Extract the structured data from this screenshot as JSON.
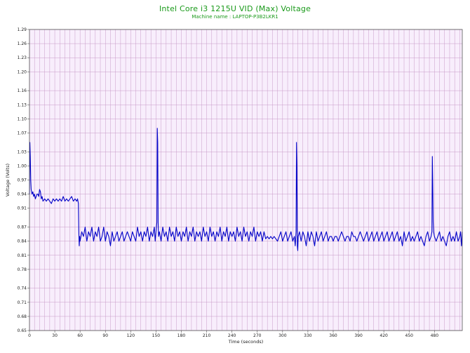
{
  "chart_data": {
    "type": "line",
    "title": "Intel Core i3 1215U VID (Max) Voltage",
    "subtitle": "Machine name : LAPTOP-P3B2LKR1",
    "xlabel": "Time (seconds)",
    "ylabel": "Voltage (Volts)",
    "xlim": [
      0,
      513
    ],
    "ylim": [
      0.65,
      1.29
    ],
    "x_ticks": [
      0,
      30,
      60,
      90,
      120,
      150,
      180,
      210,
      240,
      270,
      300,
      330,
      360,
      390,
      420,
      450,
      480
    ],
    "y_ticks": [
      0.65,
      0.68,
      0.71,
      0.74,
      0.78,
      0.81,
      0.84,
      0.87,
      0.91,
      0.94,
      0.97,
      1.0,
      1.03,
      1.07,
      1.1,
      1.13,
      1.16,
      1.2,
      1.23,
      1.26,
      1.29
    ],
    "grid": true,
    "colors": {
      "line": "#0000c8",
      "plot_bg": "#f8eefc",
      "grid": "#c89ac8",
      "title": "#1a9a1a"
    },
    "series": [
      {
        "values": [
          [
            0,
            0.94
          ],
          [
            0.5,
            1.05
          ],
          [
            1,
            1.02
          ],
          [
            1.5,
            0.97
          ],
          [
            2,
            0.95
          ],
          [
            3,
            0.94
          ],
          [
            4,
            0.945
          ],
          [
            5,
            0.935
          ],
          [
            6,
            0.94
          ],
          [
            7,
            0.93
          ],
          [
            8,
            0.935
          ],
          [
            9,
            0.94
          ],
          [
            10,
            0.94
          ],
          [
            11,
            0.935
          ],
          [
            12,
            0.95
          ],
          [
            13,
            0.945
          ],
          [
            14,
            0.93
          ],
          [
            15,
            0.935
          ],
          [
            16,
            0.925
          ],
          [
            18,
            0.93
          ],
          [
            20,
            0.925
          ],
          [
            22,
            0.93
          ],
          [
            24,
            0.925
          ],
          [
            26,
            0.92
          ],
          [
            28,
            0.93
          ],
          [
            30,
            0.925
          ],
          [
            32,
            0.93
          ],
          [
            34,
            0.925
          ],
          [
            36,
            0.93
          ],
          [
            38,
            0.925
          ],
          [
            40,
            0.935
          ],
          [
            42,
            0.925
          ],
          [
            44,
            0.93
          ],
          [
            46,
            0.925
          ],
          [
            48,
            0.93
          ],
          [
            50,
            0.935
          ],
          [
            52,
            0.925
          ],
          [
            54,
            0.93
          ],
          [
            56,
            0.925
          ],
          [
            57,
            0.93
          ],
          [
            58,
            0.92
          ],
          [
            58.5,
            0.86
          ],
          [
            59,
            0.83
          ],
          [
            59.5,
            0.85
          ],
          [
            60,
            0.84
          ],
          [
            62,
            0.86
          ],
          [
            64,
            0.85
          ],
          [
            66,
            0.87
          ],
          [
            68,
            0.84
          ],
          [
            70,
            0.86
          ],
          [
            72,
            0.85
          ],
          [
            74,
            0.87
          ],
          [
            76,
            0.84
          ],
          [
            78,
            0.86
          ],
          [
            80,
            0.85
          ],
          [
            82,
            0.87
          ],
          [
            84,
            0.84
          ],
          [
            86,
            0.85
          ],
          [
            88,
            0.87
          ],
          [
            90,
            0.84
          ],
          [
            92,
            0.86
          ],
          [
            94,
            0.85
          ],
          [
            96,
            0.83
          ],
          [
            98,
            0.86
          ],
          [
            100,
            0.84
          ],
          [
            102,
            0.85
          ],
          [
            104,
            0.86
          ],
          [
            106,
            0.84
          ],
          [
            108,
            0.85
          ],
          [
            110,
            0.86
          ],
          [
            112,
            0.84
          ],
          [
            114,
            0.85
          ],
          [
            116,
            0.86
          ],
          [
            118,
            0.85
          ],
          [
            120,
            0.84
          ],
          [
            122,
            0.86
          ],
          [
            124,
            0.85
          ],
          [
            126,
            0.84
          ],
          [
            128,
            0.87
          ],
          [
            130,
            0.85
          ],
          [
            132,
            0.86
          ],
          [
            134,
            0.84
          ],
          [
            136,
            0.86
          ],
          [
            138,
            0.85
          ],
          [
            140,
            0.87
          ],
          [
            142,
            0.84
          ],
          [
            144,
            0.86
          ],
          [
            146,
            0.85
          ],
          [
            148,
            0.87
          ],
          [
            149,
            0.84
          ],
          [
            150,
            0.86
          ],
          [
            151,
            0.88
          ],
          [
            151.5,
            1.08
          ],
          [
            152,
            1.05
          ],
          [
            152.5,
            0.88
          ],
          [
            153,
            0.85
          ],
          [
            154,
            0.86
          ],
          [
            156,
            0.84
          ],
          [
            158,
            0.87
          ],
          [
            160,
            0.85
          ],
          [
            162,
            0.86
          ],
          [
            164,
            0.84
          ],
          [
            166,
            0.87
          ],
          [
            168,
            0.85
          ],
          [
            170,
            0.86
          ],
          [
            172,
            0.84
          ],
          [
            174,
            0.87
          ],
          [
            176,
            0.85
          ],
          [
            178,
            0.86
          ],
          [
            180,
            0.84
          ],
          [
            182,
            0.86
          ],
          [
            184,
            0.85
          ],
          [
            186,
            0.87
          ],
          [
            188,
            0.84
          ],
          [
            190,
            0.86
          ],
          [
            192,
            0.85
          ],
          [
            194,
            0.87
          ],
          [
            196,
            0.84
          ],
          [
            198,
            0.86
          ],
          [
            200,
            0.85
          ],
          [
            202,
            0.86
          ],
          [
            204,
            0.84
          ],
          [
            206,
            0.87
          ],
          [
            208,
            0.85
          ],
          [
            210,
            0.86
          ],
          [
            212,
            0.84
          ],
          [
            214,
            0.87
          ],
          [
            216,
            0.85
          ],
          [
            218,
            0.86
          ],
          [
            220,
            0.84
          ],
          [
            222,
            0.86
          ],
          [
            224,
            0.85
          ],
          [
            226,
            0.87
          ],
          [
            228,
            0.84
          ],
          [
            230,
            0.86
          ],
          [
            232,
            0.85
          ],
          [
            234,
            0.87
          ],
          [
            236,
            0.84
          ],
          [
            238,
            0.86
          ],
          [
            240,
            0.85
          ],
          [
            242,
            0.86
          ],
          [
            244,
            0.84
          ],
          [
            246,
            0.87
          ],
          [
            248,
            0.85
          ],
          [
            250,
            0.86
          ],
          [
            252,
            0.84
          ],
          [
            254,
            0.87
          ],
          [
            256,
            0.85
          ],
          [
            258,
            0.86
          ],
          [
            260,
            0.84
          ],
          [
            262,
            0.86
          ],
          [
            264,
            0.85
          ],
          [
            266,
            0.87
          ],
          [
            268,
            0.84
          ],
          [
            270,
            0.86
          ],
          [
            272,
            0.85
          ],
          [
            274,
            0.86
          ],
          [
            276,
            0.84
          ],
          [
            278,
            0.86
          ],
          [
            280,
            0.845
          ],
          [
            282,
            0.85
          ],
          [
            284,
            0.845
          ],
          [
            286,
            0.85
          ],
          [
            288,
            0.845
          ],
          [
            290,
            0.85
          ],
          [
            292,
            0.845
          ],
          [
            294,
            0.84
          ],
          [
            296,
            0.85
          ],
          [
            298,
            0.86
          ],
          [
            300,
            0.84
          ],
          [
            302,
            0.85
          ],
          [
            304,
            0.86
          ],
          [
            306,
            0.84
          ],
          [
            308,
            0.85
          ],
          [
            310,
            0.86
          ],
          [
            312,
            0.84
          ],
          [
            314,
            0.85
          ],
          [
            315,
            0.83
          ],
          [
            316,
            0.86
          ],
          [
            316.5,
            1.05
          ],
          [
            317,
            1.0
          ],
          [
            317.5,
            0.83
          ],
          [
            318,
            0.82
          ],
          [
            318.5,
            0.85
          ],
          [
            320,
            0.86
          ],
          [
            322,
            0.84
          ],
          [
            324,
            0.86
          ],
          [
            326,
            0.85
          ],
          [
            328,
            0.83
          ],
          [
            330,
            0.86
          ],
          [
            332,
            0.84
          ],
          [
            334,
            0.86
          ],
          [
            336,
            0.85
          ],
          [
            338,
            0.83
          ],
          [
            340,
            0.86
          ],
          [
            342,
            0.84
          ],
          [
            344,
            0.85
          ],
          [
            346,
            0.86
          ],
          [
            348,
            0.84
          ],
          [
            350,
            0.85
          ],
          [
            352,
            0.86
          ],
          [
            354,
            0.84
          ],
          [
            356,
            0.85
          ],
          [
            358,
            0.85
          ],
          [
            360,
            0.84
          ],
          [
            362,
            0.85
          ],
          [
            364,
            0.85
          ],
          [
            366,
            0.84
          ],
          [
            368,
            0.85
          ],
          [
            370,
            0.86
          ],
          [
            372,
            0.85
          ],
          [
            374,
            0.84
          ],
          [
            376,
            0.85
          ],
          [
            378,
            0.85
          ],
          [
            380,
            0.84
          ],
          [
            382,
            0.86
          ],
          [
            384,
            0.85
          ],
          [
            386,
            0.85
          ],
          [
            388,
            0.84
          ],
          [
            390,
            0.85
          ],
          [
            392,
            0.86
          ],
          [
            394,
            0.85
          ],
          [
            396,
            0.84
          ],
          [
            398,
            0.85
          ],
          [
            400,
            0.86
          ],
          [
            402,
            0.84
          ],
          [
            404,
            0.85
          ],
          [
            406,
            0.86
          ],
          [
            408,
            0.84
          ],
          [
            410,
            0.85
          ],
          [
            412,
            0.86
          ],
          [
            414,
            0.84
          ],
          [
            416,
            0.85
          ],
          [
            418,
            0.86
          ],
          [
            420,
            0.84
          ],
          [
            422,
            0.85
          ],
          [
            424,
            0.86
          ],
          [
            426,
            0.84
          ],
          [
            428,
            0.85
          ],
          [
            430,
            0.86
          ],
          [
            432,
            0.84
          ],
          [
            434,
            0.85
          ],
          [
            436,
            0.86
          ],
          [
            438,
            0.84
          ],
          [
            440,
            0.85
          ],
          [
            442,
            0.83
          ],
          [
            444,
            0.86
          ],
          [
            446,
            0.84
          ],
          [
            448,
            0.85
          ],
          [
            450,
            0.86
          ],
          [
            452,
            0.84
          ],
          [
            454,
            0.85
          ],
          [
            456,
            0.84
          ],
          [
            458,
            0.85
          ],
          [
            460,
            0.86
          ],
          [
            462,
            0.84
          ],
          [
            464,
            0.85
          ],
          [
            466,
            0.84
          ],
          [
            468,
            0.83
          ],
          [
            470,
            0.85
          ],
          [
            472,
            0.86
          ],
          [
            474,
            0.84
          ],
          [
            476,
            0.85
          ],
          [
            477,
            0.86
          ],
          [
            477.5,
            1.02
          ],
          [
            478,
            0.96
          ],
          [
            478.5,
            0.88
          ],
          [
            479,
            0.86
          ],
          [
            480,
            0.85
          ],
          [
            482,
            0.84
          ],
          [
            484,
            0.85
          ],
          [
            486,
            0.86
          ],
          [
            488,
            0.84
          ],
          [
            490,
            0.85
          ],
          [
            492,
            0.84
          ],
          [
            494,
            0.83
          ],
          [
            496,
            0.85
          ],
          [
            498,
            0.86
          ],
          [
            500,
            0.84
          ],
          [
            502,
            0.85
          ],
          [
            504,
            0.84
          ],
          [
            506,
            0.86
          ],
          [
            508,
            0.84
          ],
          [
            510,
            0.85
          ],
          [
            511,
            0.86
          ],
          [
            512,
            0.83
          ],
          [
            513,
            0.86
          ]
        ]
      }
    ]
  }
}
